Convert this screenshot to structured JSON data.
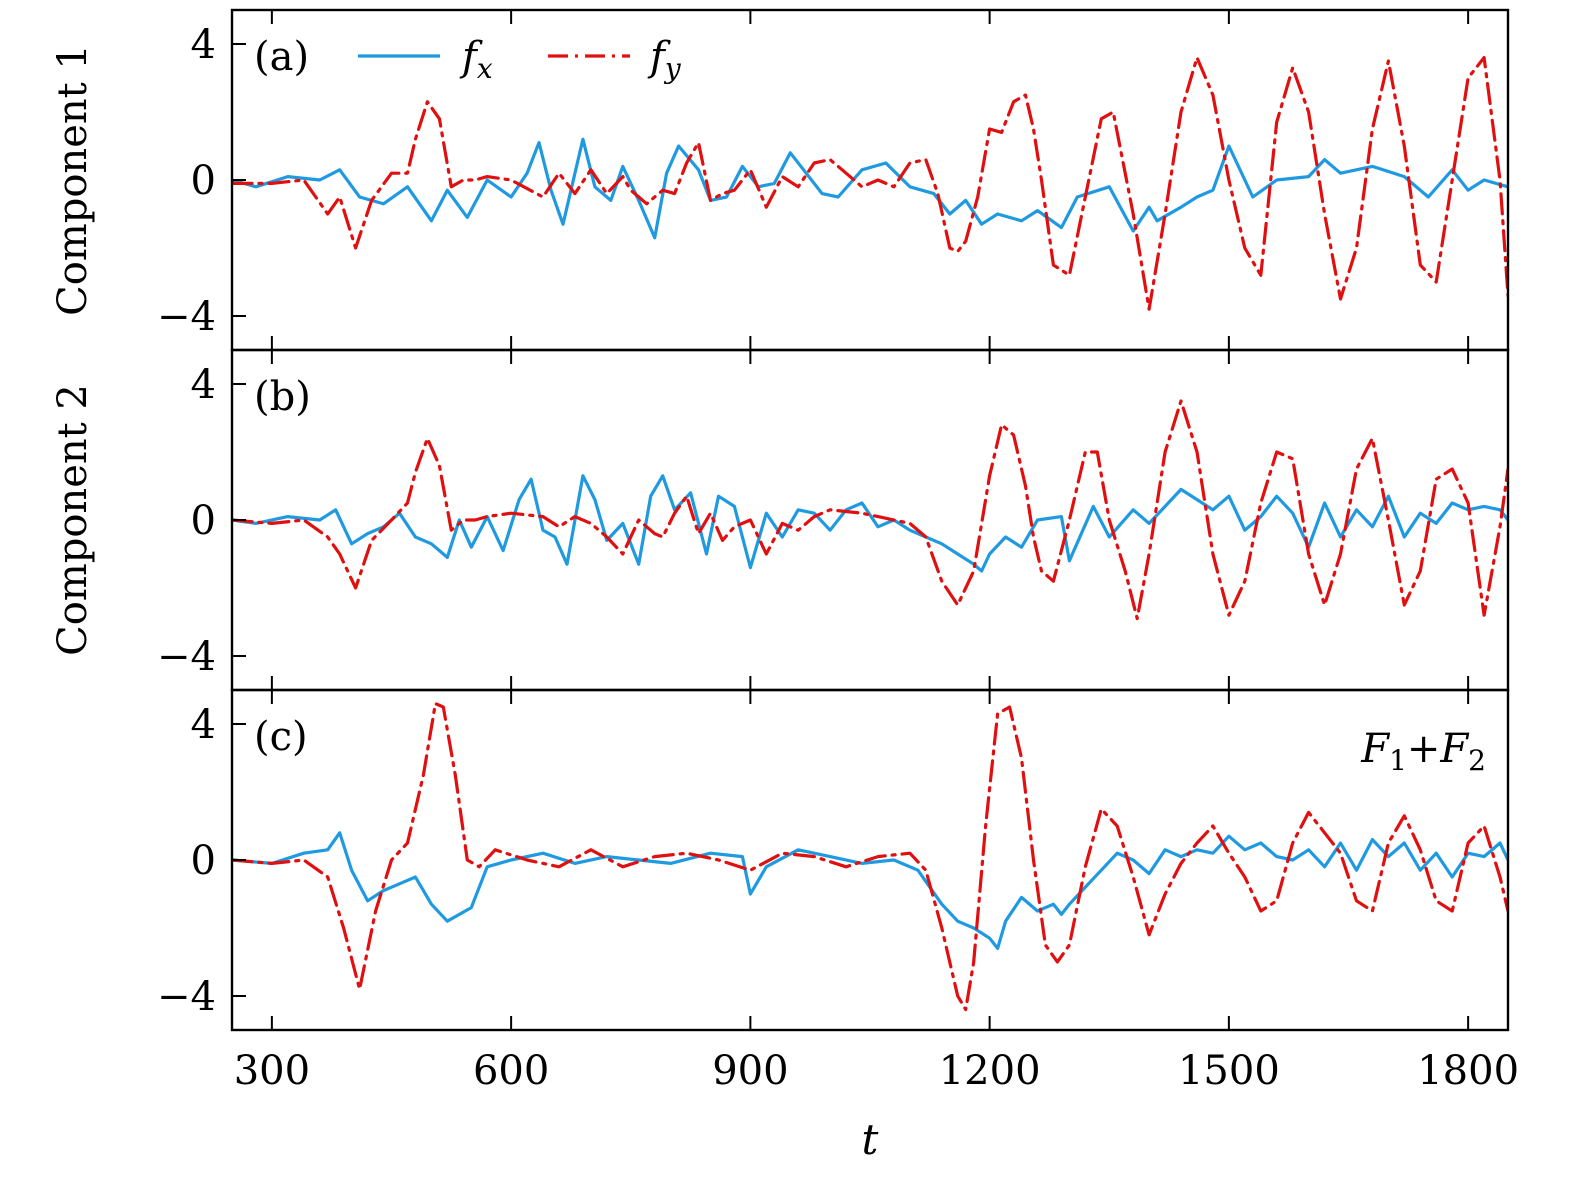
{
  "chart_data": {
    "type": "line",
    "xlabel": "t",
    "xlim": [
      250,
      1850
    ],
    "xticks": [
      300,
      600,
      900,
      1200,
      1500,
      1800
    ],
    "ylim": [
      -5,
      5
    ],
    "yticks": [
      -4,
      0,
      4
    ],
    "ytick_labels": [
      "−4",
      "0",
      "4"
    ],
    "legend": [
      {
        "name": "fx",
        "base": "f",
        "sub": "x",
        "color": "#1f9ae0",
        "style": "solid"
      },
      {
        "name": "fy",
        "base": "f",
        "sub": "y",
        "color": "#e01010",
        "style": "dash-dot"
      }
    ],
    "panels": [
      {
        "label": "(a)",
        "ylabel": "Component 1",
        "annotation": null,
        "series": [
          {
            "name": "fx",
            "color": "#1f9ae0",
            "style": "solid",
            "x": [
              250,
              280,
              320,
              360,
              385,
              410,
              440,
              470,
              500,
              520,
              545,
              570,
              600,
              620,
              635,
              650,
              665,
              690,
              705,
              725,
              740,
              760,
              780,
              795,
              810,
              835,
              850,
              870,
              890,
              910,
              930,
              950,
              970,
              990,
              1010,
              1040,
              1070,
              1100,
              1130,
              1150,
              1170,
              1190,
              1210,
              1240,
              1260,
              1290,
              1310,
              1350,
              1380,
              1400,
              1410,
              1440,
              1460,
              1480,
              1500,
              1530,
              1560,
              1600,
              1620,
              1640,
              1680,
              1720,
              1750,
              1780,
              1800,
              1820,
              1850
            ],
            "y": [
              0,
              -0.2,
              0.1,
              0,
              0.3,
              -0.5,
              -0.7,
              -0.2,
              -1.2,
              -0.3,
              -1.1,
              0,
              -0.5,
              0.2,
              1.1,
              -0.3,
              -1.3,
              1.2,
              -0.2,
              -0.6,
              0.4,
              -0.6,
              -1.7,
              0.2,
              1.0,
              0.3,
              -0.6,
              -0.5,
              0.4,
              -0.2,
              -0.1,
              0.8,
              0.2,
              -0.4,
              -0.5,
              0.3,
              0.5,
              -0.2,
              -0.4,
              -1.0,
              -0.6,
              -1.3,
              -1.0,
              -1.2,
              -0.9,
              -1.4,
              -0.5,
              -0.2,
              -1.5,
              -0.8,
              -1.2,
              -0.8,
              -0.5,
              -0.3,
              1.0,
              -0.5,
              0,
              0.1,
              0.6,
              0.2,
              0.4,
              0.1,
              -0.5,
              0.3,
              -0.3,
              0,
              -0.2
            ]
          },
          {
            "name": "fy",
            "color": "#e01010",
            "style": "dash-dot",
            "x": [
              250,
              300,
              340,
              370,
              385,
              405,
              425,
              450,
              470,
              480,
              495,
              510,
              525,
              540,
              555,
              570,
              600,
              640,
              660,
              680,
              700,
              720,
              740,
              750,
              770,
              790,
              805,
              820,
              835,
              850,
              865,
              880,
              900,
              920,
              940,
              960,
              980,
              1000,
              1020,
              1040,
              1060,
              1080,
              1100,
              1120,
              1135,
              1150,
              1160,
              1170,
              1185,
              1200,
              1215,
              1230,
              1245,
              1255,
              1265,
              1280,
              1300,
              1320,
              1340,
              1355,
              1380,
              1400,
              1420,
              1440,
              1460,
              1480,
              1500,
              1520,
              1540,
              1560,
              1580,
              1600,
              1620,
              1640,
              1660,
              1680,
              1700,
              1720,
              1740,
              1760,
              1780,
              1800,
              1820,
              1840,
              1850
            ],
            "y": [
              -0.1,
              -0.1,
              0,
              -1.0,
              -0.5,
              -2.0,
              -0.6,
              0.2,
              0.2,
              1.2,
              2.3,
              1.8,
              -0.2,
              0,
              0,
              0.1,
              0,
              -0.5,
              0.2,
              -0.4,
              0.3,
              -0.4,
              0.1,
              -0.3,
              -0.7,
              -0.3,
              -0.4,
              0.5,
              1.1,
              -0.6,
              -0.4,
              -0.3,
              0.3,
              -0.8,
              0.1,
              -0.2,
              0.5,
              0.6,
              0.2,
              -0.2,
              0,
              -0.2,
              0.5,
              0.6,
              -0.4,
              -2.0,
              -2.1,
              -1.8,
              -0.5,
              1.5,
              1.4,
              2.3,
              2.5,
              1.5,
              0,
              -2.5,
              -2.8,
              -0.5,
              1.8,
              2.0,
              -1.0,
              -3.8,
              -1.0,
              2.0,
              3.6,
              2.5,
              0,
              -2.0,
              -2.8,
              1.7,
              3.3,
              2.0,
              -1.0,
              -3.5,
              -2.0,
              1.5,
              3.5,
              1.0,
              -2.5,
              -3.0,
              0,
              3.0,
              3.6,
              0,
              -3.4
            ]
          }
        ]
      },
      {
        "label": "(b)",
        "ylabel": "Component 2",
        "annotation": null,
        "series": [
          {
            "name": "fx",
            "color": "#1f9ae0",
            "style": "solid",
            "x": [
              250,
              280,
              320,
              360,
              380,
              400,
              420,
              440,
              460,
              480,
              500,
              520,
              535,
              550,
              570,
              590,
              610,
              625,
              640,
              655,
              670,
              690,
              705,
              720,
              740,
              760,
              775,
              790,
              805,
              825,
              845,
              860,
              880,
              900,
              920,
              940,
              960,
              980,
              1000,
              1020,
              1040,
              1060,
              1080,
              1100,
              1120,
              1140,
              1160,
              1180,
              1190,
              1200,
              1220,
              1240,
              1260,
              1290,
              1300,
              1330,
              1350,
              1380,
              1400,
              1420,
              1440,
              1460,
              1480,
              1500,
              1520,
              1540,
              1560,
              1580,
              1600,
              1620,
              1640,
              1660,
              1680,
              1700,
              1720,
              1740,
              1760,
              1780,
              1800,
              1820,
              1840,
              1850
            ],
            "y": [
              0,
              -0.1,
              0.1,
              0,
              0.3,
              -0.7,
              -0.4,
              -0.2,
              0.2,
              -0.5,
              -0.7,
              -1.1,
              0,
              -0.8,
              0.1,
              -0.9,
              0.6,
              1.2,
              -0.3,
              -0.5,
              -1.3,
              1.3,
              0.6,
              -0.6,
              -0.1,
              -1.3,
              0.7,
              1.3,
              0.3,
              0.8,
              -1.0,
              0.7,
              0.4,
              -1.4,
              0.2,
              -0.5,
              0.3,
              0.2,
              -0.3,
              0.3,
              0.5,
              -0.2,
              0,
              -0.3,
              -0.5,
              -0.7,
              -1.0,
              -1.3,
              -1.5,
              -1.0,
              -0.5,
              -0.8,
              0,
              0.1,
              -1.2,
              0.4,
              -0.5,
              0.3,
              -0.1,
              0.4,
              0.9,
              0.6,
              0.3,
              0.7,
              -0.3,
              0.1,
              0.7,
              0.2,
              -0.8,
              0.5,
              -0.5,
              0.3,
              -0.2,
              0.7,
              -0.5,
              0.2,
              -0.1,
              0.5,
              0.3,
              0.4,
              0.3,
              0
            ]
          },
          {
            "name": "fy",
            "color": "#e01010",
            "style": "dash-dot",
            "x": [
              250,
              300,
              340,
              370,
              385,
              405,
              425,
              450,
              470,
              480,
              495,
              510,
              525,
              540,
              555,
              570,
              600,
              640,
              660,
              680,
              700,
              720,
              740,
              760,
              780,
              790,
              805,
              820,
              835,
              850,
              865,
              880,
              900,
              920,
              940,
              960,
              980,
              1000,
              1040,
              1080,
              1100,
              1120,
              1140,
              1160,
              1180,
              1200,
              1215,
              1230,
              1245,
              1255,
              1265,
              1280,
              1300,
              1320,
              1335,
              1350,
              1370,
              1385,
              1400,
              1420,
              1440,
              1460,
              1480,
              1500,
              1520,
              1540,
              1560,
              1580,
              1600,
              1620,
              1640,
              1660,
              1680,
              1700,
              1720,
              1740,
              1760,
              1780,
              1800,
              1820,
              1840,
              1850
            ],
            "y": [
              0,
              -0.1,
              0,
              -0.5,
              -1.0,
              -2.0,
              -0.6,
              0,
              0.5,
              1.4,
              2.4,
              1.6,
              -0.3,
              0,
              0,
              0.1,
              0.2,
              0.1,
              -0.2,
              0.1,
              -0.1,
              -0.5,
              -1.0,
              0,
              -0.4,
              -0.5,
              0.2,
              0.7,
              -0.4,
              0.2,
              -0.6,
              -0.2,
              0,
              -1.0,
              -0.1,
              -0.3,
              0.1,
              0.3,
              0.2,
              0,
              -0.1,
              -0.5,
              -1.8,
              -2.5,
              -1.5,
              1.3,
              2.8,
              2.5,
              1.0,
              -0.5,
              -1.5,
              -1.8,
              0,
              2.0,
              2.0,
              0,
              -1.5,
              -2.9,
              -1.0,
              2.0,
              3.5,
              2.0,
              -1.0,
              -2.8,
              -1.8,
              0.5,
              2.0,
              1.8,
              -1.0,
              -2.5,
              -1.0,
              1.5,
              2.4,
              0,
              -2.5,
              -1.5,
              1.2,
              1.5,
              0.5,
              -2.8,
              -0.2,
              1.5
            ]
          }
        ]
      },
      {
        "label": "(c)",
        "ylabel": "",
        "annotation": {
          "text": "F1 + F2"
        },
        "series": [
          {
            "name": "fx",
            "color": "#1f9ae0",
            "style": "solid",
            "x": [
              250,
              300,
              340,
              370,
              385,
              400,
              420,
              440,
              460,
              480,
              500,
              520,
              535,
              550,
              570,
              600,
              640,
              680,
              720,
              760,
              800,
              850,
              890,
              900,
              920,
              960,
              1000,
              1040,
              1080,
              1110,
              1140,
              1160,
              1180,
              1200,
              1210,
              1220,
              1240,
              1260,
              1280,
              1290,
              1300,
              1320,
              1340,
              1360,
              1380,
              1400,
              1420,
              1440,
              1460,
              1480,
              1500,
              1520,
              1540,
              1560,
              1580,
              1600,
              1620,
              1640,
              1660,
              1680,
              1700,
              1720,
              1740,
              1760,
              1780,
              1800,
              1820,
              1840,
              1850
            ],
            "y": [
              0,
              -0.1,
              0.2,
              0.3,
              0.8,
              -0.3,
              -1.2,
              -0.9,
              -0.7,
              -0.5,
              -1.3,
              -1.8,
              -1.6,
              -1.4,
              -0.2,
              0,
              0.2,
              -0.1,
              0.1,
              0,
              -0.1,
              0.2,
              0.1,
              -1.0,
              -0.2,
              0.3,
              0.1,
              -0.1,
              0,
              -0.3,
              -1.3,
              -1.8,
              -2.0,
              -2.3,
              -2.6,
              -1.8,
              -1.1,
              -1.5,
              -1.3,
              -1.6,
              -1.3,
              -0.8,
              -0.3,
              0.2,
              0,
              -0.4,
              0.3,
              0.1,
              0.3,
              0.2,
              0.7,
              0.3,
              0.5,
              0.1,
              0,
              0.3,
              -0.2,
              0.5,
              -0.3,
              0.6,
              0.1,
              0.5,
              -0.3,
              0.2,
              -0.5,
              0.2,
              0.1,
              0.5,
              0
            ]
          },
          {
            "name": "fy",
            "color": "#e01010",
            "style": "dash-dot",
            "x": [
              250,
              300,
              340,
              370,
              390,
              410,
              430,
              450,
              470,
              490,
              505,
              515,
              530,
              545,
              560,
              580,
              620,
              660,
              700,
              740,
              780,
              820,
              860,
              900,
              940,
              980,
              1020,
              1060,
              1100,
              1120,
              1140,
              1160,
              1170,
              1180,
              1195,
              1210,
              1225,
              1240,
              1255,
              1270,
              1285,
              1300,
              1320,
              1340,
              1360,
              1380,
              1400,
              1420,
              1440,
              1460,
              1480,
              1500,
              1520,
              1540,
              1560,
              1580,
              1600,
              1620,
              1640,
              1660,
              1680,
              1700,
              1720,
              1740,
              1760,
              1780,
              1800,
              1820,
              1840,
              1850
            ],
            "y": [
              0,
              -0.1,
              0,
              -0.5,
              -2.0,
              -3.8,
              -1.5,
              0,
              0.5,
              2.5,
              4.6,
              4.5,
              2.5,
              0,
              -0.2,
              0.3,
              0,
              -0.2,
              0.3,
              -0.2,
              0.1,
              0.2,
              0,
              -0.3,
              0.2,
              0.1,
              -0.2,
              0.1,
              0.2,
              -0.3,
              -2.0,
              -4.0,
              -4.4,
              -3.0,
              1.0,
              4.3,
              4.5,
              3.0,
              0,
              -2.5,
              -3.0,
              -2.5,
              -0.2,
              1.5,
              1.0,
              -0.5,
              -2.2,
              -1.0,
              -0.1,
              0.5,
              1.0,
              0.2,
              -0.5,
              -1.5,
              -1.2,
              0.5,
              1.4,
              0.8,
              0.2,
              -1.2,
              -1.5,
              0.5,
              1.3,
              0.3,
              -1.2,
              -1.5,
              0.5,
              1.0,
              -0.5,
              -1.5
            ]
          }
        ]
      }
    ]
  }
}
